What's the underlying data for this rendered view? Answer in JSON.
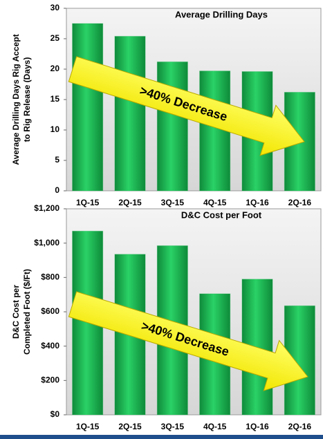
{
  "chart_data": [
    {
      "type": "bar",
      "title": "Average Drilling Days",
      "ylabel": [
        "Average Drilling Days Rig Accept",
        "to Rig Release (Days)"
      ],
      "annotation": ">40% Decrease",
      "categories": [
        "1Q-15",
        "2Q-15",
        "3Q-15",
        "4Q-15",
        "1Q-16",
        "2Q-16"
      ],
      "values": [
        27.5,
        25.4,
        21.2,
        19.7,
        19.6,
        16.2
      ],
      "color": "#1db954",
      "ylim": [
        0,
        30
      ],
      "yticks": [
        0,
        5,
        10,
        15,
        20,
        25,
        30
      ]
    },
    {
      "type": "bar",
      "title": "D&C Cost per Foot",
      "ylabel": [
        "D&C Cost per",
        "Completed Foot ($/Ft)"
      ],
      "annotation": ">40% Decrease",
      "categories": [
        "1Q-15",
        "2Q-15",
        "3Q-15",
        "4Q-15",
        "1Q-16",
        "2Q-16"
      ],
      "values": [
        1070,
        935,
        985,
        705,
        790,
        635
      ],
      "color": "#1db954",
      "ylim": [
        0,
        1200
      ],
      "yticks": [
        {
          "value": 0,
          "label": "$0"
        },
        {
          "value": 200,
          "label": "$200"
        },
        {
          "value": 400,
          "label": "$400"
        },
        {
          "value": 600,
          "label": "$600"
        },
        {
          "value": 800,
          "label": "$800"
        },
        {
          "value": 1000,
          "label": "$1,000"
        },
        {
          "value": 1200,
          "label": "$1,200"
        }
      ]
    }
  ]
}
